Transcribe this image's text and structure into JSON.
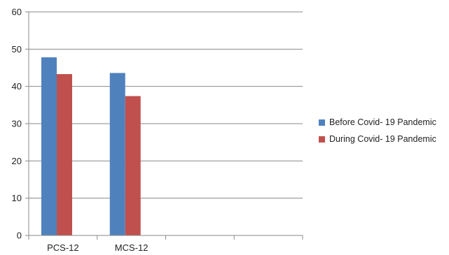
{
  "chart_data": {
    "type": "bar",
    "title": "",
    "xlabel": "",
    "ylabel": "",
    "categories": [
      "PCS-12",
      "MCS-12",
      "",
      ""
    ],
    "series": [
      {
        "name": "Before Covid- 19 Pandemic",
        "color": "#4f81bd",
        "values": [
          47.8,
          43.6,
          null,
          null
        ]
      },
      {
        "name": "During Covid- 19 Pandemic",
        "color": "#c0504d",
        "values": [
          43.3,
          37.4,
          null,
          null
        ]
      }
    ],
    "ylim": [
      0,
      60
    ],
    "yticks": [
      0,
      10,
      20,
      30,
      40,
      50,
      60
    ],
    "grid": true,
    "legend_position": "right"
  }
}
